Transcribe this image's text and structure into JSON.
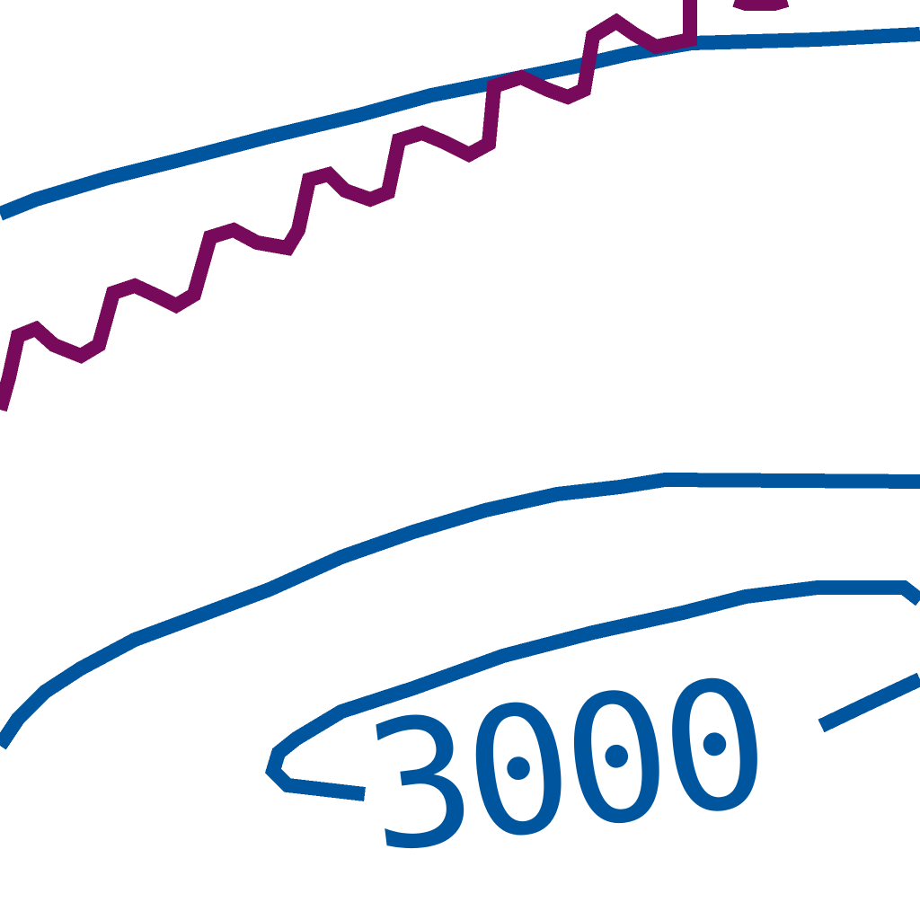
{
  "map": {
    "colors": {
      "background": "#ffffff",
      "contour": "#00569e",
      "route": "#780a5b"
    },
    "contour_label": "3000"
  }
}
